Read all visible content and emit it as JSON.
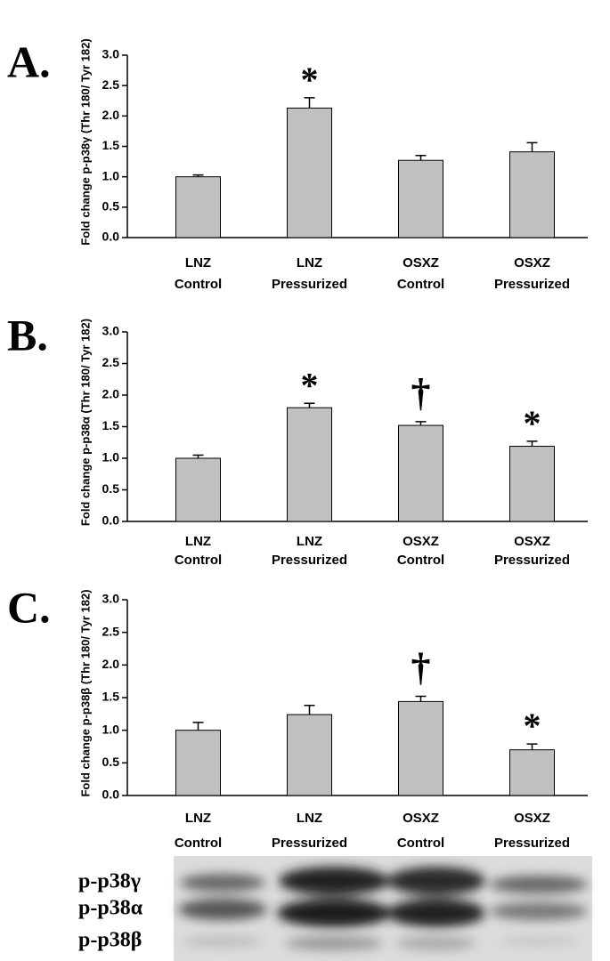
{
  "chart_data": [
    {
      "type": "bar",
      "label": "A.",
      "y_label": "Fold change p-p38γ (Thr 180/ Tyr 182)",
      "categories": [
        [
          "LNZ",
          "Control"
        ],
        [
          "LNZ",
          "Pressurized"
        ],
        [
          "OSXZ",
          "Control"
        ],
        [
          "OSXZ",
          "Pressurized"
        ]
      ],
      "values": [
        1.0,
        2.13,
        1.27,
        1.41
      ],
      "errors": [
        0.03,
        0.17,
        0.08,
        0.15
      ],
      "markers": [
        null,
        "*",
        null,
        null
      ],
      "color": "#c0c0c0",
      "ylim": [
        0,
        3
      ],
      "yticks": [
        {
          "value": 0,
          "label": "0.0"
        },
        0.5,
        {
          "value": 1,
          "label": "1.0"
        },
        1.5,
        {
          "value": 2,
          "label": "2.0"
        },
        2.5,
        {
          "value": 3,
          "label": "3.0"
        }
      ]
    },
    {
      "type": "bar",
      "label": "B.",
      "y_label": "Fold change p-p38α (Thr 180/ Tyr 182)",
      "categories": [
        [
          "LNZ",
          "Control"
        ],
        [
          "LNZ",
          "Pressurized"
        ],
        [
          "OSXZ",
          "Control"
        ],
        [
          "OSXZ",
          "Pressurized"
        ]
      ],
      "values": [
        1.0,
        1.8,
        1.52,
        1.19
      ],
      "errors": [
        0.05,
        0.07,
        0.06,
        0.08
      ],
      "markers": [
        null,
        "*",
        "†",
        "*"
      ],
      "color": "#c0c0c0",
      "ylim": [
        0,
        3
      ],
      "yticks": [
        {
          "value": 0,
          "label": "0.0"
        },
        0.5,
        {
          "value": 1,
          "label": "1.0"
        },
        1.5,
        {
          "value": 2,
          "label": "2.0"
        },
        2.5,
        {
          "value": 3,
          "label": "3.0"
        }
      ]
    },
    {
      "type": "bar",
      "label": "C.",
      "y_label": "Fold change p-p38β (Thr 180/ Tyr 182)",
      "categories": [
        [
          "LNZ",
          "Control"
        ],
        [
          "LNZ",
          "Pressurized"
        ],
        [
          "OSXZ",
          "Control"
        ],
        [
          "OSXZ",
          "Pressurized"
        ]
      ],
      "values": [
        1.0,
        1.24,
        1.44,
        0.7
      ],
      "errors": [
        0.12,
        0.14,
        0.08,
        0.09
      ],
      "markers": [
        null,
        null,
        "†",
        "*"
      ],
      "color": "#c0c0c0",
      "ylim": [
        0,
        3
      ],
      "yticks": [
        {
          "value": 0,
          "label": "0.0"
        },
        0.5,
        {
          "value": 1,
          "label": "1.0"
        },
        1.5,
        {
          "value": 2,
          "label": "2.0"
        },
        2.5,
        {
          "value": 3,
          "label": "3.0"
        }
      ]
    }
  ],
  "blot": {
    "labels": [
      "p-p38γ",
      "p-p38α",
      "p-p38β"
    ]
  }
}
